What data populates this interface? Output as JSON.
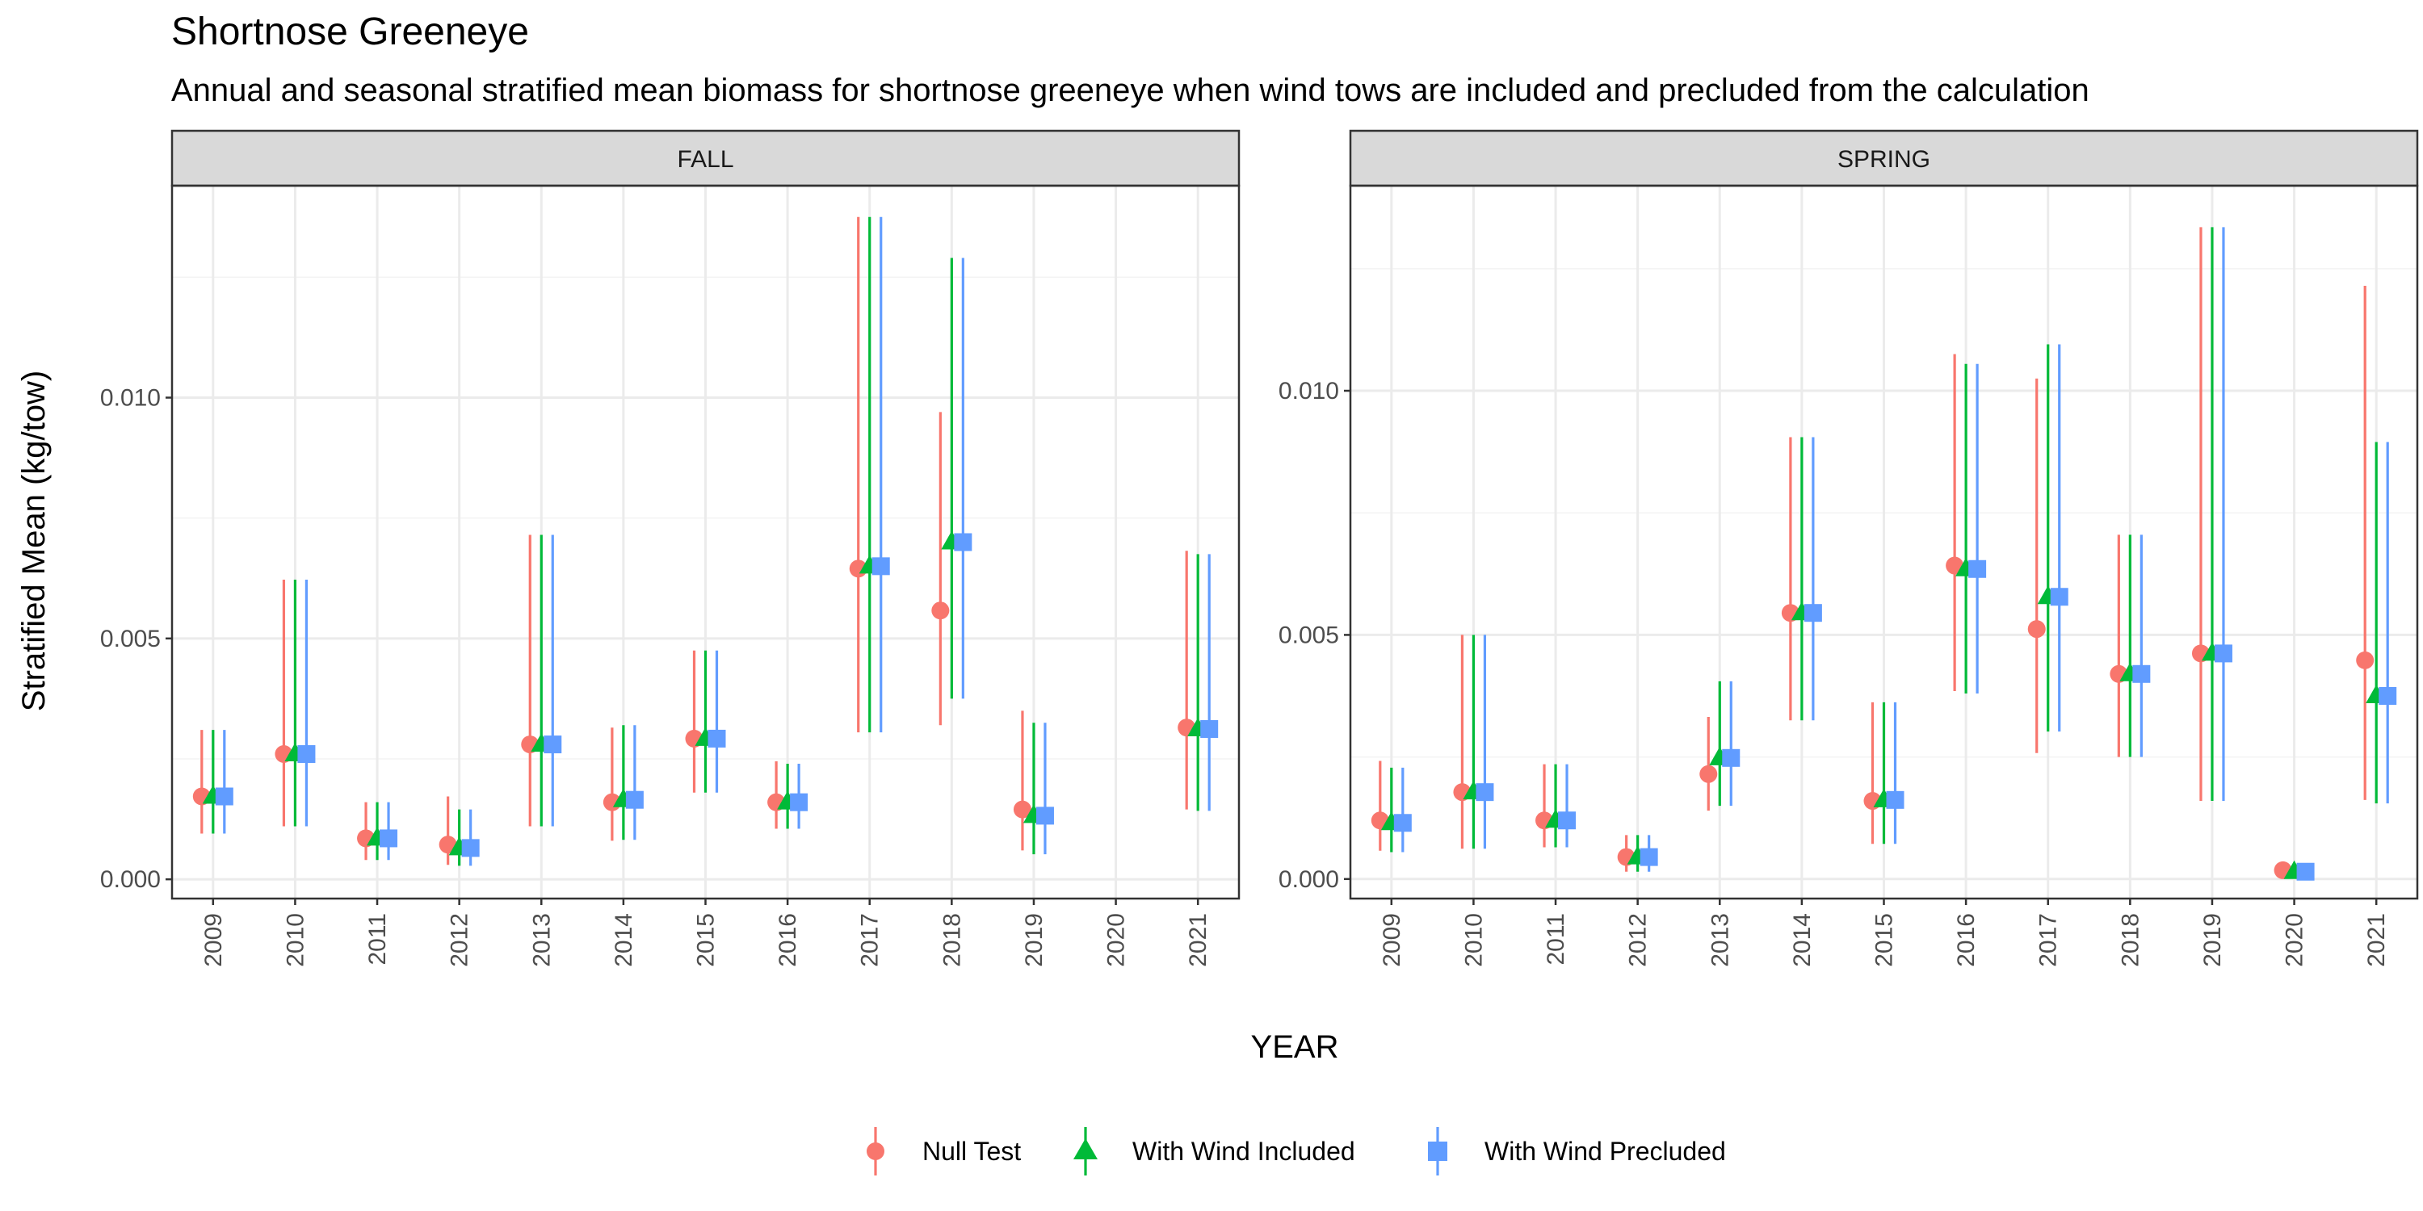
{
  "chart_data": {
    "type": "scatter",
    "title": "Shortnose Greeneye",
    "subtitle": "Annual and seasonal stratified mean biomass for shortnose greeneye when wind tows are included and precluded from the calculation",
    "xlabel": "YEAR",
    "ylabel": "Stratified Mean (kg/tow)",
    "grid": true,
    "legend_position": "bottom",
    "categories": [
      "2009",
      "2010",
      "2011",
      "2012",
      "2013",
      "2014",
      "2015",
      "2016",
      "2017",
      "2018",
      "2019",
      "2020",
      "2021"
    ],
    "series_style": [
      {
        "name": "Null Test",
        "color": "#F8766D",
        "marker": "circle"
      },
      {
        "name": "With Wind Included",
        "color": "#00BA38",
        "marker": "triangle"
      },
      {
        "name": "With Wind Precluded",
        "color": "#619CFF",
        "marker": "square"
      }
    ],
    "panels": [
      {
        "label": "FALL",
        "ylim": [
          -0.0004,
          0.0144
        ],
        "yticks": [
          0.0,
          0.005,
          0.01
        ],
        "ytick_labels": [
          "0.000",
          "0.005",
          "0.010"
        ],
        "series": [
          {
            "name": "Null Test",
            "values": [
              {
                "x": "2009",
                "y": 0.00172,
                "lo": 0.00095,
                "hi": 0.0031
              },
              {
                "x": "2010",
                "y": 0.0026,
                "lo": 0.0011,
                "hi": 0.00622
              },
              {
                "x": "2011",
                "y": 0.00085,
                "lo": 0.0004,
                "hi": 0.0016
              },
              {
                "x": "2012",
                "y": 0.00072,
                "lo": 0.0003,
                "hi": 0.00172
              },
              {
                "x": "2013",
                "y": 0.0028,
                "lo": 0.0011,
                "hi": 0.00715
              },
              {
                "x": "2014",
                "y": 0.0016,
                "lo": 0.0008,
                "hi": 0.00315
              },
              {
                "x": "2015",
                "y": 0.00292,
                "lo": 0.0018,
                "hi": 0.00475
              },
              {
                "x": "2016",
                "y": 0.0016,
                "lo": 0.00105,
                "hi": 0.00245
              },
              {
                "x": "2017",
                "y": 0.00645,
                "lo": 0.00305,
                "hi": 0.01375
              },
              {
                "x": "2018",
                "y": 0.00558,
                "lo": 0.0032,
                "hi": 0.0097
              },
              {
                "x": "2019",
                "y": 0.00145,
                "lo": 0.0006,
                "hi": 0.0035
              },
              {
                "x": "2021",
                "y": 0.00315,
                "lo": 0.00145,
                "hi": 0.00682
              }
            ]
          },
          {
            "name": "With Wind Included",
            "values": [
              {
                "x": "2009",
                "y": 0.00172,
                "lo": 0.00095,
                "hi": 0.0031
              },
              {
                "x": "2010",
                "y": 0.0026,
                "lo": 0.0011,
                "hi": 0.00622
              },
              {
                "x": "2011",
                "y": 0.00085,
                "lo": 0.0004,
                "hi": 0.0016
              },
              {
                "x": "2012",
                "y": 0.00065,
                "lo": 0.00028,
                "hi": 0.00145
              },
              {
                "x": "2013",
                "y": 0.0028,
                "lo": 0.0011,
                "hi": 0.00715
              },
              {
                "x": "2014",
                "y": 0.00165,
                "lo": 0.00082,
                "hi": 0.0032
              },
              {
                "x": "2015",
                "y": 0.00292,
                "lo": 0.0018,
                "hi": 0.00475
              },
              {
                "x": "2016",
                "y": 0.0016,
                "lo": 0.00105,
                "hi": 0.0024
              },
              {
                "x": "2017",
                "y": 0.0065,
                "lo": 0.00305,
                "hi": 0.01375
              },
              {
                "x": "2018",
                "y": 0.007,
                "lo": 0.00375,
                "hi": 0.0129
              },
              {
                "x": "2019",
                "y": 0.00132,
                "lo": 0.00052,
                "hi": 0.00325
              },
              {
                "x": "2021",
                "y": 0.00312,
                "lo": 0.00142,
                "hi": 0.00675
              }
            ]
          },
          {
            "name": "With Wind Precluded",
            "values": [
              {
                "x": "2009",
                "y": 0.00172,
                "lo": 0.00095,
                "hi": 0.0031
              },
              {
                "x": "2010",
                "y": 0.0026,
                "lo": 0.0011,
                "hi": 0.00622
              },
              {
                "x": "2011",
                "y": 0.00085,
                "lo": 0.0004,
                "hi": 0.0016
              },
              {
                "x": "2012",
                "y": 0.00065,
                "lo": 0.00028,
                "hi": 0.00145
              },
              {
                "x": "2013",
                "y": 0.0028,
                "lo": 0.0011,
                "hi": 0.00715
              },
              {
                "x": "2014",
                "y": 0.00165,
                "lo": 0.00082,
                "hi": 0.0032
              },
              {
                "x": "2015",
                "y": 0.00292,
                "lo": 0.0018,
                "hi": 0.00475
              },
              {
                "x": "2016",
                "y": 0.0016,
                "lo": 0.00105,
                "hi": 0.0024
              },
              {
                "x": "2017",
                "y": 0.0065,
                "lo": 0.00305,
                "hi": 0.01375
              },
              {
                "x": "2018",
                "y": 0.007,
                "lo": 0.00375,
                "hi": 0.0129
              },
              {
                "x": "2019",
                "y": 0.00132,
                "lo": 0.00052,
                "hi": 0.00325
              },
              {
                "x": "2021",
                "y": 0.00312,
                "lo": 0.00142,
                "hi": 0.00675
              }
            ]
          }
        ]
      },
      {
        "label": "SPRING",
        "ylim": [
          -0.0004,
          0.0142
        ],
        "yticks": [
          0.0,
          0.005,
          0.01
        ],
        "ytick_labels": [
          "0.000",
          "0.005",
          "0.010"
        ],
        "series": [
          {
            "name": "Null Test",
            "values": [
              {
                "x": "2009",
                "y": 0.0012,
                "lo": 0.00058,
                "hi": 0.00242
              },
              {
                "x": "2010",
                "y": 0.00178,
                "lo": 0.00062,
                "hi": 0.005
              },
              {
                "x": "2011",
                "y": 0.0012,
                "lo": 0.00065,
                "hi": 0.00235
              },
              {
                "x": "2012",
                "y": 0.00045,
                "lo": 0.00015,
                "hi": 0.0009
              },
              {
                "x": "2013",
                "y": 0.00215,
                "lo": 0.0014,
                "hi": 0.00332
              },
              {
                "x": "2014",
                "y": 0.00545,
                "lo": 0.00325,
                "hi": 0.00905
              },
              {
                "x": "2015",
                "y": 0.0016,
                "lo": 0.00072,
                "hi": 0.00362
              },
              {
                "x": "2016",
                "y": 0.00642,
                "lo": 0.00385,
                "hi": 0.01075
              },
              {
                "x": "2017",
                "y": 0.00512,
                "lo": 0.00258,
                "hi": 0.01025
              },
              {
                "x": "2018",
                "y": 0.0042,
                "lo": 0.0025,
                "hi": 0.00705
              },
              {
                "x": "2019",
                "y": 0.00462,
                "lo": 0.0016,
                "hi": 0.01335
              },
              {
                "x": "2020",
                "y": 0.00018,
                "lo": 8e-05,
                "hi": 0.0003
              },
              {
                "x": "2021",
                "y": 0.00448,
                "lo": 0.00162,
                "hi": 0.01215
              }
            ]
          },
          {
            "name": "With Wind Included",
            "values": [
              {
                "x": "2009",
                "y": 0.00115,
                "lo": 0.00055,
                "hi": 0.00228
              },
              {
                "x": "2010",
                "y": 0.00178,
                "lo": 0.00062,
                "hi": 0.005
              },
              {
                "x": "2011",
                "y": 0.0012,
                "lo": 0.00065,
                "hi": 0.00235
              },
              {
                "x": "2012",
                "y": 0.00045,
                "lo": 0.00015,
                "hi": 0.0009
              },
              {
                "x": "2013",
                "y": 0.00248,
                "lo": 0.0015,
                "hi": 0.00405
              },
              {
                "x": "2014",
                "y": 0.00545,
                "lo": 0.00325,
                "hi": 0.00905
              },
              {
                "x": "2015",
                "y": 0.00162,
                "lo": 0.00072,
                "hi": 0.00362
              },
              {
                "x": "2016",
                "y": 0.00635,
                "lo": 0.0038,
                "hi": 0.01055
              },
              {
                "x": "2017",
                "y": 0.00578,
                "lo": 0.00302,
                "hi": 0.01095
              },
              {
                "x": "2018",
                "y": 0.0042,
                "lo": 0.0025,
                "hi": 0.00705
              },
              {
                "x": "2019",
                "y": 0.00462,
                "lo": 0.0016,
                "hi": 0.01335
              },
              {
                "x": "2020",
                "y": 0.00015,
                "lo": 5e-05,
                "hi": 0.00025
              },
              {
                "x": "2021",
                "y": 0.00375,
                "lo": 0.00155,
                "hi": 0.00895
              }
            ]
          },
          {
            "name": "With Wind Precluded",
            "values": [
              {
                "x": "2009",
                "y": 0.00115,
                "lo": 0.00055,
                "hi": 0.00228
              },
              {
                "x": "2010",
                "y": 0.00178,
                "lo": 0.00062,
                "hi": 0.005
              },
              {
                "x": "2011",
                "y": 0.0012,
                "lo": 0.00065,
                "hi": 0.00235
              },
              {
                "x": "2012",
                "y": 0.00045,
                "lo": 0.00015,
                "hi": 0.0009
              },
              {
                "x": "2013",
                "y": 0.00248,
                "lo": 0.0015,
                "hi": 0.00405
              },
              {
                "x": "2014",
                "y": 0.00545,
                "lo": 0.00325,
                "hi": 0.00905
              },
              {
                "x": "2015",
                "y": 0.00162,
                "lo": 0.00072,
                "hi": 0.00362
              },
              {
                "x": "2016",
                "y": 0.00635,
                "lo": 0.0038,
                "hi": 0.01055
              },
              {
                "x": "2017",
                "y": 0.00578,
                "lo": 0.00302,
                "hi": 0.01095
              },
              {
                "x": "2018",
                "y": 0.0042,
                "lo": 0.0025,
                "hi": 0.00705
              },
              {
                "x": "2019",
                "y": 0.00462,
                "lo": 0.0016,
                "hi": 0.01335
              },
              {
                "x": "2020",
                "y": 0.00015,
                "lo": 5e-05,
                "hi": 0.00025
              },
              {
                "x": "2021",
                "y": 0.00375,
                "lo": 0.00155,
                "hi": 0.00895
              }
            ]
          }
        ]
      }
    ]
  }
}
